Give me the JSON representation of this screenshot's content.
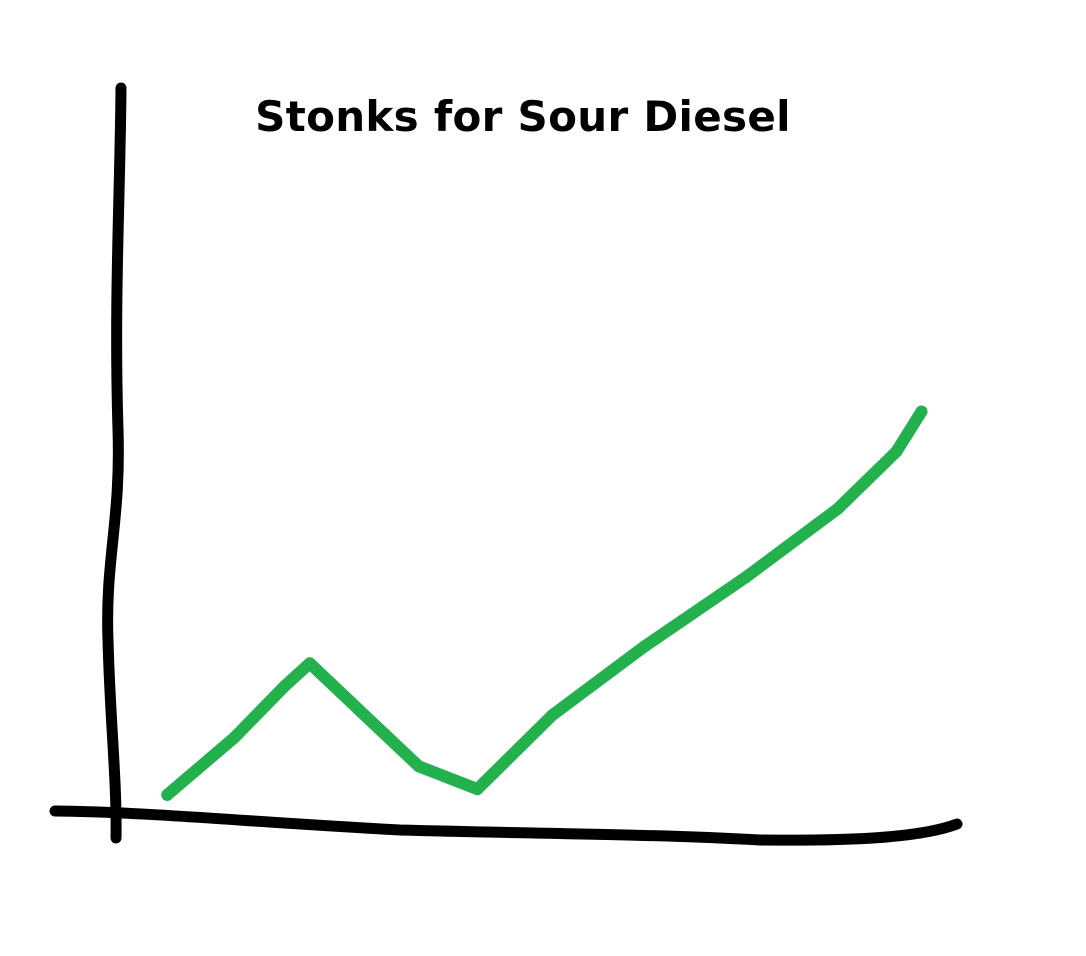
{
  "chart_data": {
    "type": "line",
    "title": "Stonks for Sour Diesel",
    "xlabel": "",
    "ylabel": "",
    "xlim": [
      0,
      10
    ],
    "ylim": [
      0,
      10
    ],
    "grid": false,
    "ticks": false,
    "hand_drawn": true,
    "series": [
      {
        "color": "#22b14c",
        "x": [
          0.6,
          1.4,
          2.0,
          2.3,
          3.6,
          4.3,
          5.2,
          6.3,
          7.5,
          8.6,
          9.3,
          9.6
        ],
        "y": [
          0.3,
          1.3,
          2.2,
          2.6,
          0.8,
          0.4,
          1.7,
          2.9,
          4.1,
          5.3,
          6.3,
          7.0
        ]
      }
    ],
    "axes_color": "#000000"
  }
}
